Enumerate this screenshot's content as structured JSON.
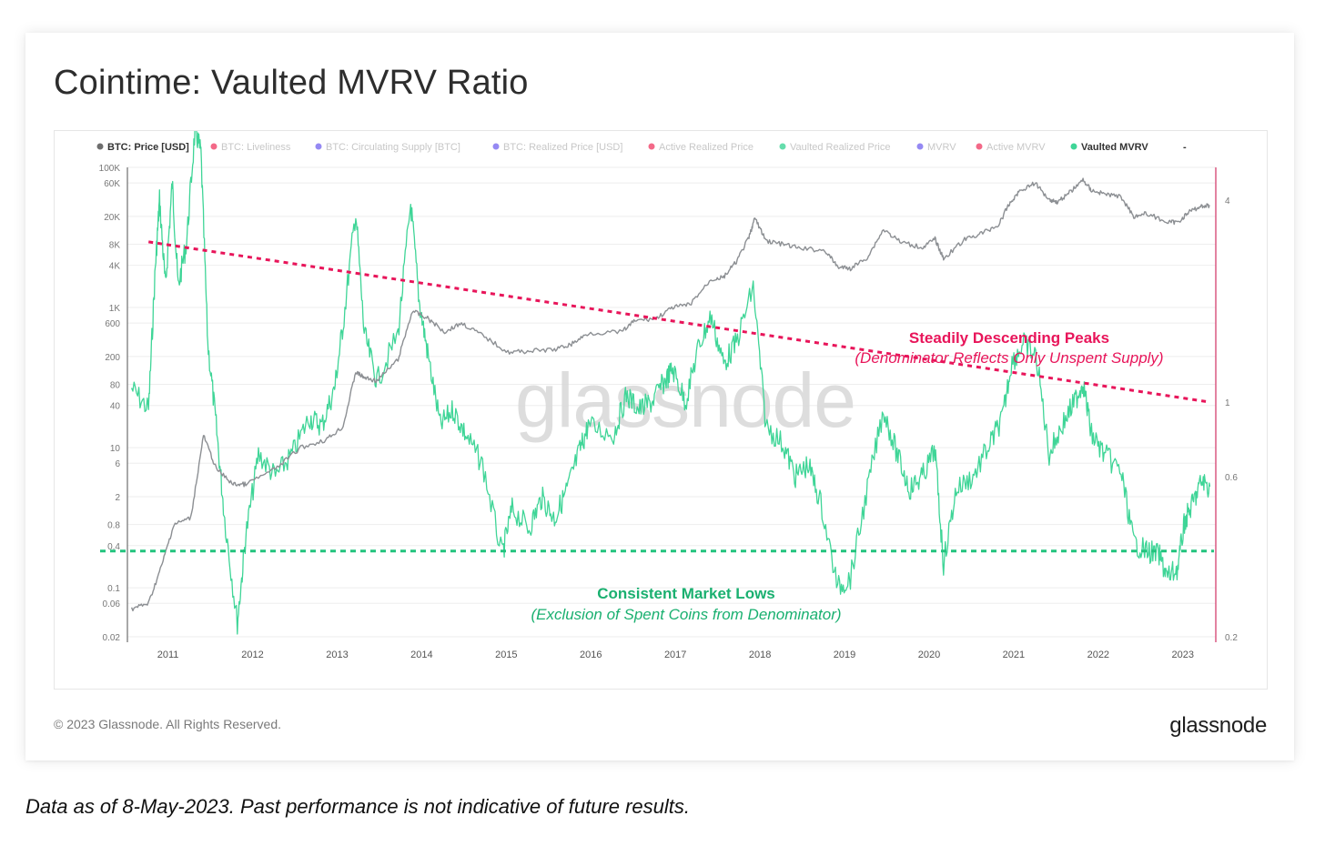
{
  "title": "Cointime: Vaulted MVRV Ratio",
  "footer": {
    "copyright": "© 2023 Glassnode. All Rights Reserved.",
    "brand": "glassnode"
  },
  "disclaimer": "Data as of 8-May-2023. Past performance is not indicative of future results.",
  "watermark": "glassnode",
  "colors": {
    "price": "#8c8f93",
    "vaulted_mvrv": "#3fd597",
    "peaks_line": "#e8155a",
    "lows_line": "#23c47e",
    "right_axis": "#d4406f"
  },
  "legend": [
    {
      "label": "BTC: Price [USD]",
      "color": "#6e6e6e",
      "active": true
    },
    {
      "label": "BTC: Liveliness",
      "color": "#f0446a",
      "active": false
    },
    {
      "label": "BTC: Circulating Supply [BTC]",
      "color": "#7a6cf0",
      "active": false
    },
    {
      "label": "BTC: Realized Price [USD]",
      "color": "#7a6cf0",
      "active": false
    },
    {
      "label": "Active Realized Price",
      "color": "#f0446a",
      "active": false
    },
    {
      "label": "Vaulted Realized Price",
      "color": "#3fd597",
      "active": false
    },
    {
      "label": "MVRV",
      "color": "#7a6cf0",
      "active": false
    },
    {
      "label": "Active MVRV",
      "color": "#f0446a",
      "active": false
    },
    {
      "label": "Vaulted MVRV",
      "color": "#3fd597",
      "active": true
    },
    {
      "label": "-",
      "color": "",
      "active": true
    }
  ],
  "annotations": {
    "peaks_title": "Steadily Descending Peaks",
    "peaks_sub": "(Denominator Reflects Only Unspent Supply)",
    "lows_title": "Consistent Market Lows",
    "lows_sub": "(Exclusion of Spent Coins from Denominator)"
  },
  "chart_data": {
    "type": "line",
    "x_ticks": [
      "2011",
      "2012",
      "2013",
      "2014",
      "2015",
      "2016",
      "2017",
      "2018",
      "2019",
      "2020",
      "2021",
      "2022",
      "2023"
    ],
    "left_axis": {
      "scale": "log",
      "ticks": [
        "0.02",
        "0.06",
        "0.1",
        "0.4",
        "0.8",
        "2",
        "6",
        "10",
        "40",
        "80",
        "200",
        "600",
        "1K",
        "4K",
        "8K",
        "20K",
        "60K",
        "100K"
      ]
    },
    "right_axis": {
      "scale": "log",
      "ticks": [
        "0.2",
        "0.6",
        "1",
        "4"
      ]
    },
    "series": [
      {
        "name": "BTC: Price [USD]",
        "axis": "left",
        "points": [
          [
            2010.6,
            0.05
          ],
          [
            2010.8,
            0.06
          ],
          [
            2010.95,
            0.2
          ],
          [
            2011.1,
            0.8
          ],
          [
            2011.3,
            1.0
          ],
          [
            2011.45,
            15
          ],
          [
            2011.6,
            5
          ],
          [
            2011.8,
            3
          ],
          [
            2011.95,
            3
          ],
          [
            2012.3,
            5
          ],
          [
            2012.6,
            10
          ],
          [
            2012.9,
            13
          ],
          [
            2013.1,
            20
          ],
          [
            2013.25,
            120
          ],
          [
            2013.35,
            100
          ],
          [
            2013.5,
            90
          ],
          [
            2013.75,
            180
          ],
          [
            2013.92,
            900
          ],
          [
            2014.1,
            700
          ],
          [
            2014.3,
            450
          ],
          [
            2014.5,
            600
          ],
          [
            2014.75,
            400
          ],
          [
            2015.05,
            230
          ],
          [
            2015.3,
            240
          ],
          [
            2015.6,
            250
          ],
          [
            2015.8,
            300
          ],
          [
            2016.0,
            430
          ],
          [
            2016.4,
            450
          ],
          [
            2016.55,
            650
          ],
          [
            2016.8,
            700
          ],
          [
            2017.0,
            1000
          ],
          [
            2017.2,
            1100
          ],
          [
            2017.45,
            2500
          ],
          [
            2017.6,
            2700
          ],
          [
            2017.75,
            4500
          ],
          [
            2017.9,
            10000
          ],
          [
            2017.97,
            19000
          ],
          [
            2018.1,
            9000
          ],
          [
            2018.3,
            8000
          ],
          [
            2018.5,
            7000
          ],
          [
            2018.8,
            6500
          ],
          [
            2018.95,
            3800
          ],
          [
            2019.1,
            3600
          ],
          [
            2019.3,
            5200
          ],
          [
            2019.49,
            13000
          ],
          [
            2019.7,
            8500
          ],
          [
            2019.95,
            7200
          ],
          [
            2020.1,
            9500
          ],
          [
            2020.2,
            5000
          ],
          [
            2020.45,
            9300
          ],
          [
            2020.65,
            11500
          ],
          [
            2020.85,
            15000
          ],
          [
            2020.97,
            29000
          ],
          [
            2021.1,
            46000
          ],
          [
            2021.28,
            60000
          ],
          [
            2021.45,
            35000
          ],
          [
            2021.55,
            32000
          ],
          [
            2021.7,
            45000
          ],
          [
            2021.85,
            66000
          ],
          [
            2021.95,
            47000
          ],
          [
            2022.1,
            42000
          ],
          [
            2022.3,
            38000
          ],
          [
            2022.45,
            20000
          ],
          [
            2022.6,
            22000
          ],
          [
            2022.85,
            16500
          ],
          [
            2022.97,
            16500
          ],
          [
            2023.1,
            23000
          ],
          [
            2023.25,
            28000
          ],
          [
            2023.35,
            28500
          ]
        ]
      },
      {
        "name": "Vaulted MVRV",
        "axis": "right",
        "points": [
          [
            2010.6,
            1.1
          ],
          [
            2010.8,
            0.95
          ],
          [
            2010.88,
            2.5
          ],
          [
            2010.93,
            4.0
          ],
          [
            2011.0,
            2.2
          ],
          [
            2011.08,
            4.5
          ],
          [
            2011.15,
            2.2
          ],
          [
            2011.25,
            3.0
          ],
          [
            2011.35,
            6.5
          ],
          [
            2011.42,
            5.5
          ],
          [
            2011.5,
            1.5
          ],
          [
            2011.6,
            0.85
          ],
          [
            2011.7,
            0.45
          ],
          [
            2011.85,
            0.22
          ],
          [
            2011.95,
            0.4
          ],
          [
            2012.1,
            0.7
          ],
          [
            2012.3,
            0.6
          ],
          [
            2012.5,
            0.7
          ],
          [
            2012.7,
            0.9
          ],
          [
            2012.85,
            0.85
          ],
          [
            2013.0,
            1.1
          ],
          [
            2013.1,
            1.7
          ],
          [
            2013.25,
            3.7
          ],
          [
            2013.35,
            1.6
          ],
          [
            2013.5,
            1.15
          ],
          [
            2013.75,
            1.6
          ],
          [
            2013.9,
            3.9
          ],
          [
            2014.0,
            2.0
          ],
          [
            2014.1,
            1.4
          ],
          [
            2014.25,
            0.85
          ],
          [
            2014.4,
            0.95
          ],
          [
            2014.55,
            0.8
          ],
          [
            2014.75,
            0.65
          ],
          [
            2014.98,
            0.35
          ],
          [
            2015.1,
            0.48
          ],
          [
            2015.3,
            0.42
          ],
          [
            2015.45,
            0.52
          ],
          [
            2015.6,
            0.45
          ],
          [
            2015.75,
            0.55
          ],
          [
            2015.9,
            0.72
          ],
          [
            2016.0,
            0.85
          ],
          [
            2016.3,
            0.8
          ],
          [
            2016.45,
            1.05
          ],
          [
            2016.6,
            0.95
          ],
          [
            2016.75,
            1.0
          ],
          [
            2016.9,
            1.15
          ],
          [
            2017.0,
            1.25
          ],
          [
            2017.15,
            1.0
          ],
          [
            2017.3,
            1.45
          ],
          [
            2017.45,
            1.8
          ],
          [
            2017.6,
            1.3
          ],
          [
            2017.75,
            1.5
          ],
          [
            2017.95,
            2.2
          ],
          [
            2018.1,
            0.85
          ],
          [
            2018.3,
            0.75
          ],
          [
            2018.45,
            0.6
          ],
          [
            2018.6,
            0.65
          ],
          [
            2018.75,
            0.5
          ],
          [
            2018.95,
            0.28
          ],
          [
            2019.1,
            0.3
          ],
          [
            2019.3,
            0.55
          ],
          [
            2019.49,
            0.95
          ],
          [
            2019.65,
            0.7
          ],
          [
            2019.8,
            0.55
          ],
          [
            2019.95,
            0.6
          ],
          [
            2020.1,
            0.72
          ],
          [
            2020.2,
            0.33
          ],
          [
            2020.35,
            0.55
          ],
          [
            2020.55,
            0.6
          ],
          [
            2020.75,
            0.75
          ],
          [
            2020.9,
            0.9
          ],
          [
            2021.0,
            1.3
          ],
          [
            2021.15,
            1.5
          ],
          [
            2021.3,
            1.35
          ],
          [
            2021.45,
            0.7
          ],
          [
            2021.6,
            0.85
          ],
          [
            2021.75,
            1.0
          ],
          [
            2021.85,
            1.15
          ],
          [
            2021.95,
            0.8
          ],
          [
            2022.1,
            0.7
          ],
          [
            2022.3,
            0.62
          ],
          [
            2022.45,
            0.38
          ],
          [
            2022.6,
            0.36
          ],
          [
            2022.75,
            0.35
          ],
          [
            2022.85,
            0.3
          ],
          [
            2022.97,
            0.32
          ],
          [
            2023.05,
            0.44
          ],
          [
            2023.15,
            0.5
          ],
          [
            2023.25,
            0.58
          ],
          [
            2023.35,
            0.56
          ]
        ]
      }
    ],
    "trendlines": [
      {
        "name": "Steadily Descending Peaks",
        "from": [
          2010.8,
          3.0
        ],
        "to": [
          2023.35,
          1.0
        ]
      },
      {
        "name": "Consistent Market Lows",
        "at": 0.36
      }
    ]
  }
}
